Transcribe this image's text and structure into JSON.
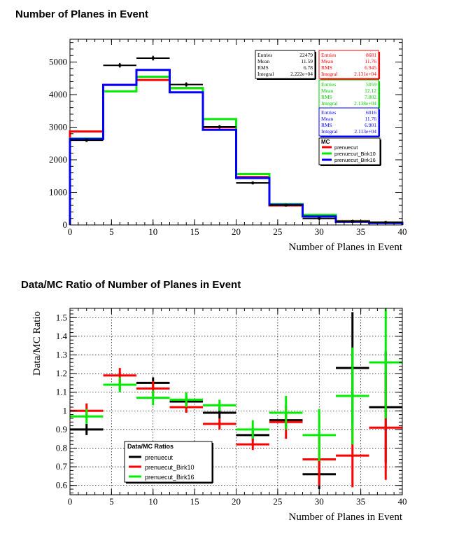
{
  "chart_data": [
    {
      "type": "histogram",
      "title": "Number of Planes in Event",
      "xlabel": "Number of Planes in Event",
      "ylabel": "",
      "xlim": [
        0,
        40
      ],
      "ylim": [
        0,
        5700
      ],
      "xticks": [
        0,
        5,
        10,
        15,
        20,
        25,
        30,
        35,
        40
      ],
      "yticks": [
        0,
        1000,
        2000,
        3000,
        4000,
        5000
      ],
      "bin_edges": [
        0,
        4,
        8,
        12,
        16,
        20,
        24,
        28,
        32,
        36,
        40
      ],
      "data": {
        "name": "data",
        "color": "#000000",
        "values": [
          2600,
          4900,
          5120,
          4310,
          3010,
          1290,
          610,
          200,
          110,
          80
        ],
        "errors": [
          51,
          70,
          72,
          66,
          55,
          36,
          25,
          14,
          10,
          9
        ]
      },
      "stats_data": {
        "rows": [
          [
            "Entries",
            "22479"
          ],
          [
            "Mean",
            "11.59"
          ],
          [
            "RMS",
            "6.78"
          ],
          [
            "Integral",
            "2.222e+04"
          ]
        ],
        "color": "#000000"
      },
      "series": [
        {
          "name": "prenuecut",
          "color": "#ff0000",
          "values": [
            2870,
            4300,
            4450,
            4200,
            3000,
            1470,
            600,
            290,
            120,
            70
          ],
          "stats": [
            [
              "Entries",
              "8681"
            ],
            [
              "Mean",
              "11.76"
            ],
            [
              "RMS",
              "6.945"
            ],
            [
              "Integral",
              "2.131e+04"
            ]
          ]
        },
        {
          "name": "prenuecut_Birk10",
          "color": "#00ee00",
          "values": [
            2650,
            4100,
            4550,
            4200,
            3250,
            1560,
            640,
            310,
            110,
            70
          ],
          "stats": [
            [
              "Entries",
              "5059"
            ],
            [
              "Mean",
              "12.12"
            ],
            [
              "RMS",
              "7.002"
            ],
            [
              "Integral",
              "2.138e+04"
            ]
          ]
        },
        {
          "name": "prenuecut_Birk16",
          "color": "#0000ff",
          "values": [
            2640,
            4300,
            4760,
            4070,
            2920,
            1440,
            620,
            260,
            100,
            60
          ],
          "stats": [
            [
              "Entries",
              "6016"
            ],
            [
              "Mean",
              "11.76"
            ],
            [
              "RMS",
              "6.901"
            ],
            [
              "Integral",
              "2.113e+04"
            ]
          ]
        }
      ],
      "legend": {
        "title": "MC",
        "placement": "right"
      }
    },
    {
      "type": "scatter",
      "title": "Data/MC Ratio of Number of Planes in Event",
      "xlabel": "Number of Planes in Event",
      "ylabel": "Data/MC Ratio",
      "xlim": [
        0,
        40
      ],
      "ylim": [
        0.55,
        1.55
      ],
      "xticks": [
        0,
        5,
        10,
        15,
        20,
        25,
        30,
        35,
        40
      ],
      "yticks": [
        "0.6",
        "0.7",
        "0.8",
        "0.9",
        "1",
        "1.1",
        "1.2",
        "1.3",
        "1.4",
        "1.5"
      ],
      "grid": true,
      "bin_edges": [
        0,
        4,
        8,
        12,
        16,
        20,
        24,
        28,
        32,
        36,
        40
      ],
      "series": [
        {
          "name": "prenuecut",
          "color": "#000000",
          "values": [
            0.9,
            1.14,
            1.15,
            1.05,
            0.99,
            0.87,
            0.95,
            0.66,
            1.23,
            1.02
          ],
          "errors": [
            0.03,
            0.03,
            0.03,
            0.03,
            0.03,
            0.03,
            0.05,
            0.08,
            0.3,
            0.3
          ]
        },
        {
          "name": "prenuecut_Birk10",
          "color": "#ff0000",
          "values": [
            1.0,
            1.19,
            1.12,
            1.02,
            0.93,
            0.82,
            0.94,
            0.74,
            0.76,
            0.91
          ],
          "errors": [
            0.04,
            0.04,
            0.04,
            0.03,
            0.03,
            0.03,
            0.09,
            0.14,
            0.17,
            0.28
          ]
        },
        {
          "name": "prenuecut_Birk16",
          "color": "#00ee00",
          "values": [
            0.97,
            1.14,
            1.07,
            1.06,
            1.03,
            0.9,
            0.99,
            0.87,
            1.08,
            1.26
          ],
          "errors": [
            0.04,
            0.04,
            0.04,
            0.04,
            0.03,
            0.05,
            0.09,
            0.14,
            0.26,
            0.3
          ]
        }
      ],
      "legend": {
        "title": "Data/MC Ratios",
        "placement": "bottom-left"
      }
    }
  ]
}
